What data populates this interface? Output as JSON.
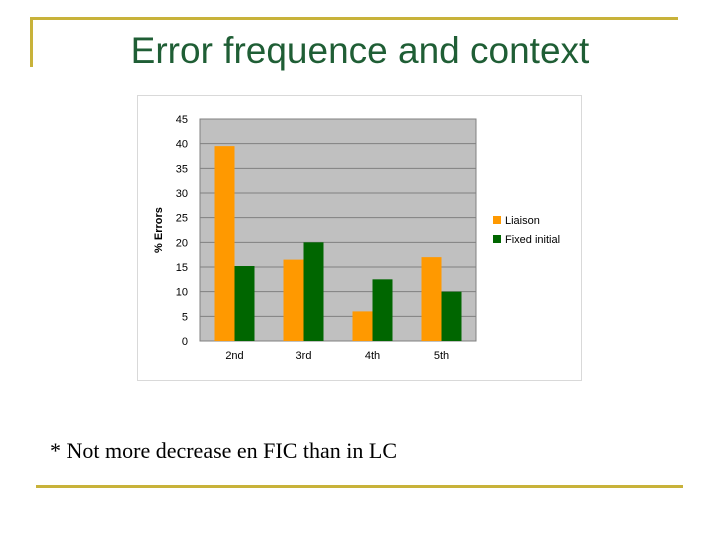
{
  "slide": {
    "title": "Error frequence and context",
    "note": "* Not more decrease en FIC than in LC"
  },
  "colors": {
    "title": "#1f5e35",
    "accent_lines": "#c8b23a",
    "plot_bg": "#c0c0c0"
  },
  "chart_data": {
    "type": "bar",
    "categories": [
      "2nd",
      "3rd",
      "4th",
      "5th"
    ],
    "series": [
      {
        "name": "Liaison",
        "color": "#ff9900",
        "values": [
          39.5,
          16.5,
          6,
          17
        ]
      },
      {
        "name": "Fixed initial",
        "color": "#006600",
        "values": [
          15.2,
          20,
          12.5,
          10
        ]
      }
    ],
    "ylabel": "% Errors",
    "ylim": [
      0,
      45
    ],
    "yticks": [
      "0",
      "5",
      "10",
      "15",
      "20",
      "25",
      "30",
      "35",
      "40",
      "45"
    ],
    "grid": true,
    "legend": "right"
  }
}
